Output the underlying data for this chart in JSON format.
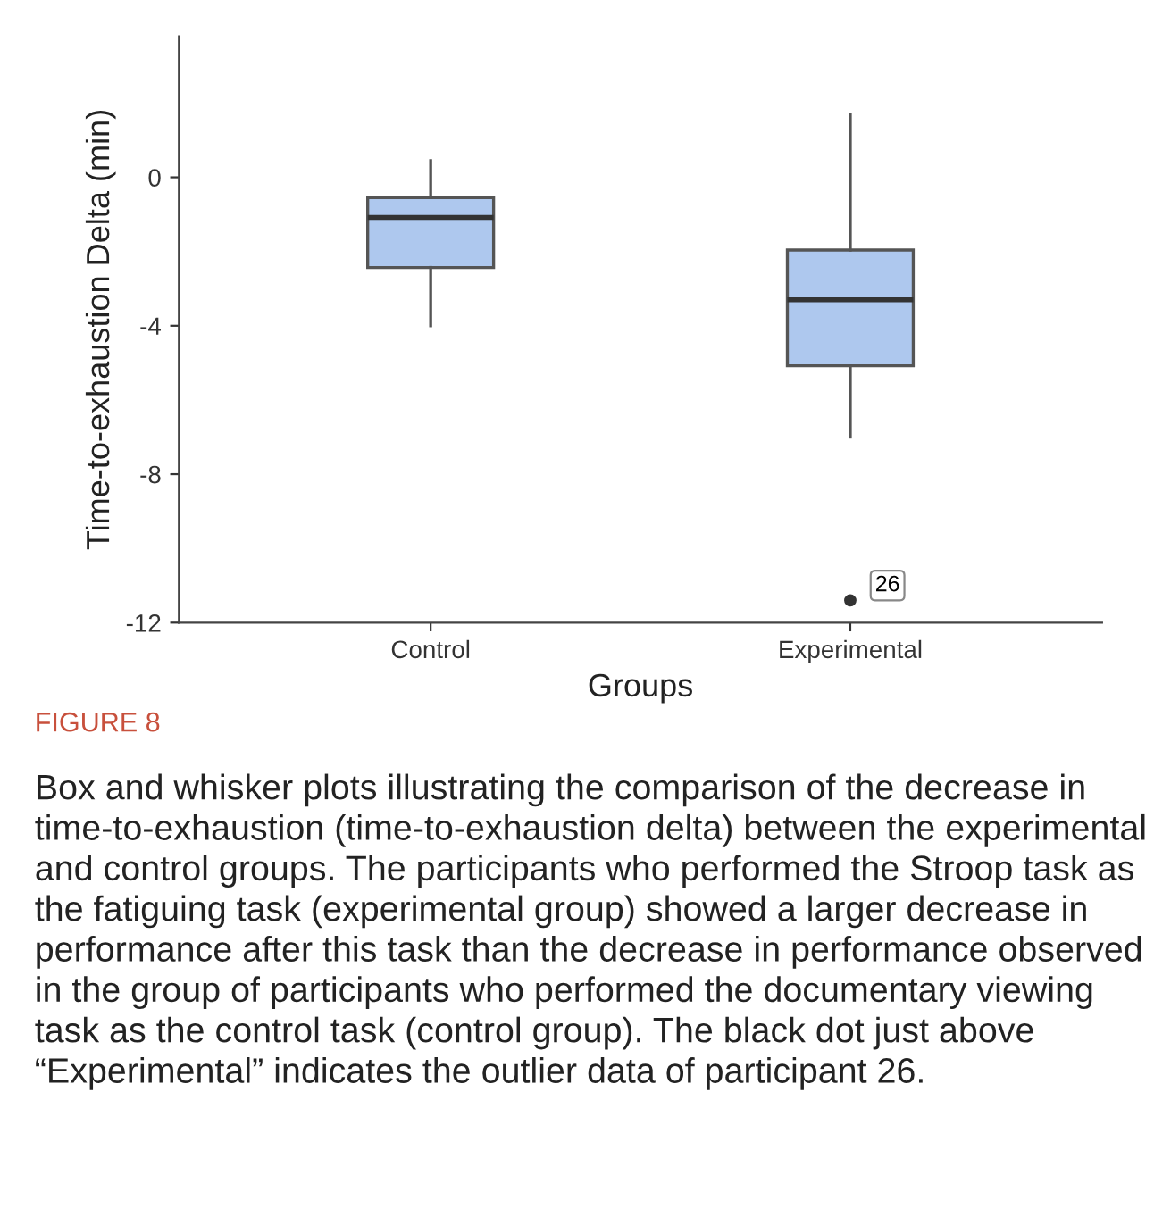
{
  "chart_data": {
    "type": "box",
    "title": "FIGURE 8",
    "xlabel": "Groups",
    "ylabel": "Time-to-exhaustion Delta (min)",
    "categories": [
      "Control",
      "Experimental"
    ],
    "boxes": [
      {
        "low": -4.0,
        "q1": -2.43,
        "median": -1.08,
        "q3": -0.55,
        "high": 0.45
      },
      {
        "low": -7.0,
        "q1": -5.08,
        "median": -3.3,
        "q3": -1.96,
        "high": 1.7,
        "outliers": [
          -11.4
        ]
      }
    ],
    "color": "#aec8ee",
    "ylim": [
      -12,
      3.8
    ],
    "yticks": [
      -12,
      -8,
      -4,
      0
    ],
    "grid": false,
    "annotations": [
      "26",
      "Box and whisker plots illustrating the comparison of the decrease in time-to-exhaustion (time-to-exhaustion delta) between the experimental and control groups. The participants who performed the Stroop task as the fatiguing task (experimental group) showed a larger decrease in performance after this task than the decrease in performance observed in the group of participants who performed the documentary viewing task as the control task (control group). The black dot just above “Experimental” indicates the outlier data of participant 26."
    ]
  }
}
